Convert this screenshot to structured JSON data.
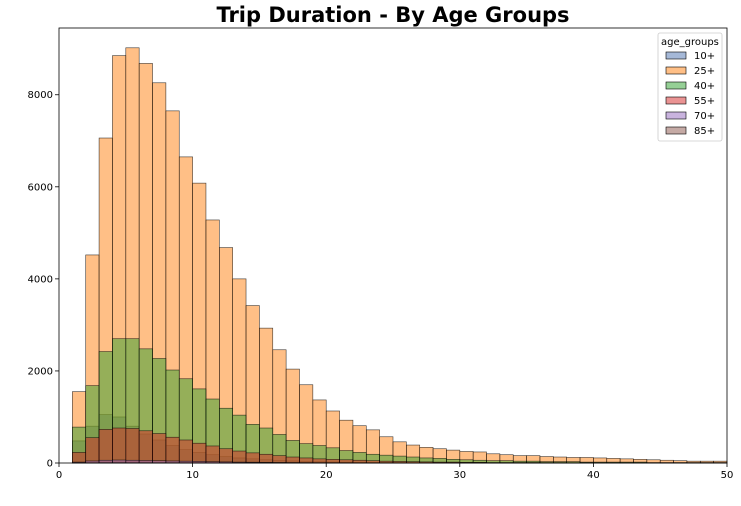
{
  "chart_data": {
    "type": "bar",
    "title": "Trip Duration - By Age Groups",
    "xlabel": "",
    "ylabel": "",
    "xlim": [
      0,
      50
    ],
    "ylim": [
      0,
      9450
    ],
    "xticks": [
      0,
      10,
      20,
      30,
      40,
      50
    ],
    "yticks": [
      0,
      2000,
      4000,
      6000,
      8000
    ],
    "grid": false,
    "legend_title": "age_groups",
    "legend_position": "top-right",
    "bin_start": 1,
    "bin_width": 1,
    "x": [
      1,
      2,
      3,
      4,
      5,
      6,
      7,
      8,
      9,
      10,
      11,
      12,
      13,
      14,
      15,
      16,
      17,
      18,
      19,
      20,
      21,
      22,
      23,
      24,
      25,
      26,
      27,
      28,
      29,
      30,
      31,
      32,
      33,
      34,
      35,
      36,
      37,
      38,
      39,
      40,
      41,
      42,
      43,
      44,
      45,
      46,
      47,
      48,
      49
    ],
    "series": [
      {
        "name": "10+",
        "color": "#4c72b0",
        "values": [
          480,
          800,
          1050,
          1000,
          800,
          630,
          500,
          380,
          290,
          230,
          180,
          140,
          110,
          90,
          70,
          55,
          45,
          35,
          28,
          22,
          18,
          14,
          11,
          9,
          7,
          6,
          5,
          4,
          3,
          3,
          2,
          2,
          2,
          1,
          1,
          1,
          1,
          1,
          1,
          0,
          0,
          0,
          0,
          0,
          0,
          0,
          0,
          0,
          0
        ]
      },
      {
        "name": "25+",
        "color": "#ff7f0e",
        "values": [
          1550,
          4520,
          7060,
          8850,
          9020,
          8680,
          8260,
          7650,
          6650,
          6080,
          5280,
          4680,
          4000,
          3420,
          2930,
          2460,
          2040,
          1700,
          1370,
          1130,
          930,
          810,
          720,
          570,
          460,
          390,
          340,
          310,
          280,
          250,
          240,
          200,
          180,
          160,
          160,
          140,
          130,
          120,
          120,
          110,
          100,
          90,
          80,
          70,
          60,
          50,
          40,
          40,
          40
        ]
      },
      {
        "name": "40+",
        "color": "#2ca02c",
        "values": [
          780,
          1680,
          2420,
          2700,
          2700,
          2480,
          2270,
          2020,
          1830,
          1610,
          1390,
          1190,
          1040,
          840,
          760,
          620,
          490,
          420,
          380,
          330,
          270,
          230,
          190,
          170,
          150,
          130,
          110,
          100,
          80,
          70,
          60,
          50,
          50,
          40,
          40,
          30,
          30,
          30,
          20,
          20,
          20,
          20,
          20,
          10,
          10,
          10,
          10,
          10,
          10
        ]
      },
      {
        "name": "55+",
        "color": "#d62728",
        "values": [
          230,
          550,
          730,
          760,
          750,
          700,
          640,
          560,
          500,
          430,
          370,
          310,
          260,
          220,
          190,
          160,
          130,
          110,
          90,
          80,
          70,
          60,
          50,
          40,
          35,
          30,
          25,
          20,
          20,
          15,
          15,
          10,
          10,
          10,
          10,
          8,
          8,
          6,
          6,
          5,
          5,
          4,
          4,
          3,
          3,
          3,
          2,
          2,
          2
        ]
      },
      {
        "name": "70+",
        "color": "#9467bd",
        "values": [
          20,
          45,
          60,
          65,
          60,
          55,
          50,
          45,
          40,
          35,
          30,
          25,
          20,
          18,
          15,
          12,
          10,
          8,
          7,
          6,
          5,
          4,
          4,
          3,
          3,
          2,
          2,
          2,
          1,
          1,
          1,
          1,
          1,
          1,
          1,
          0,
          0,
          0,
          0,
          0,
          0,
          0,
          0,
          0,
          0,
          0,
          0,
          0,
          0
        ]
      },
      {
        "name": "85+",
        "color": "#8c564b",
        "values": [
          2,
          4,
          6,
          6,
          5,
          5,
          4,
          4,
          3,
          3,
          2,
          2,
          2,
          1,
          1,
          1,
          1,
          1,
          1,
          1,
          0,
          0,
          0,
          0,
          0,
          0,
          0,
          0,
          0,
          0,
          0,
          0,
          0,
          0,
          0,
          0,
          0,
          0,
          0,
          0,
          0,
          0,
          0,
          0,
          0,
          0,
          0,
          0,
          0
        ]
      }
    ]
  }
}
